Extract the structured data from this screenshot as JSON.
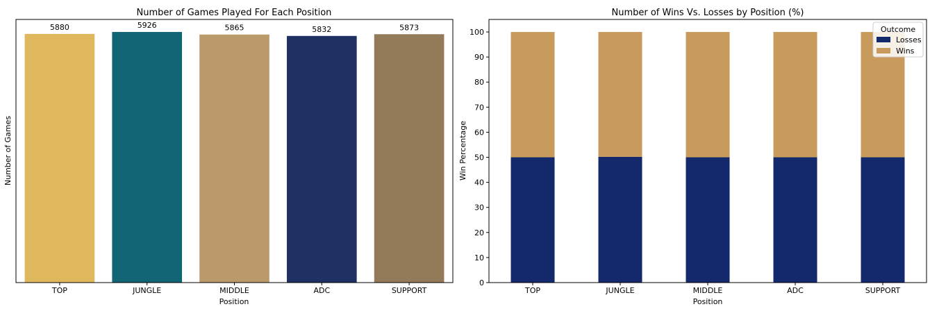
{
  "chart_data": [
    {
      "type": "bar",
      "title": "Number of Games Played For Each Position",
      "xlabel": "Position",
      "ylabel": "Number of Games",
      "categories": [
        "TOP",
        "JUNGLE",
        "MIDDLE",
        "ADC",
        "SUPPORT"
      ],
      "values": [
        5880,
        5926,
        5865,
        5832,
        5873
      ],
      "data_labels": [
        "5880",
        "5926",
        "5865",
        "5832",
        "5873"
      ],
      "colors": [
        "#dfb85e",
        "#116575",
        "#ba996a",
        "#1f3062",
        "#937a59"
      ],
      "ylim": [
        0,
        6222
      ],
      "yticks_visible": false,
      "grid": false
    },
    {
      "type": "bar",
      "stacked": true,
      "title": "Number of Wins Vs. Losses by Position (%)",
      "xlabel": "Position",
      "ylabel": "Win Percentage",
      "categories": [
        "TOP",
        "JUNGLE",
        "MIDDLE",
        "ADC",
        "SUPPORT"
      ],
      "series": [
        {
          "name": "Losses",
          "values": [
            50.0,
            50.2,
            50.0,
            50.0,
            50.0
          ],
          "color": "#13296c"
        },
        {
          "name": "Wins",
          "values": [
            50.0,
            49.8,
            50.0,
            50.0,
            50.0
          ],
          "color": "#c89b5c"
        }
      ],
      "ylim": [
        0,
        105
      ],
      "yticks": [
        "0",
        "10",
        "20",
        "30",
        "40",
        "50",
        "60",
        "70",
        "80",
        "90",
        "100"
      ],
      "legend": {
        "title": "Outcome",
        "position": "top-right"
      },
      "grid": false
    }
  ]
}
